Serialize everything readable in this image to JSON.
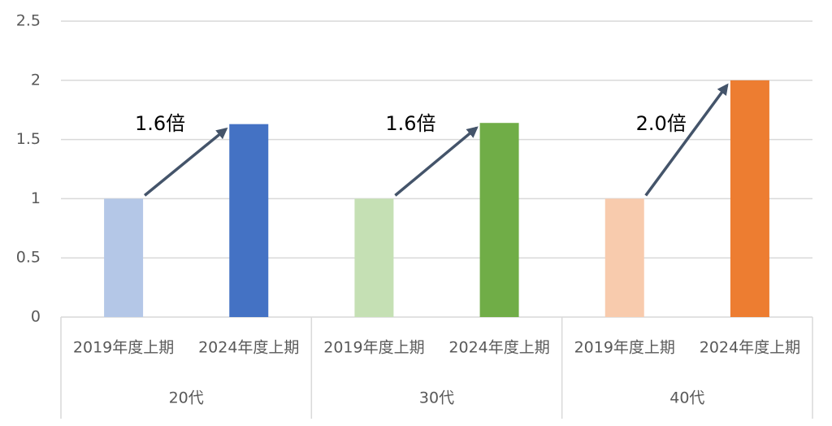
{
  "chart_data": {
    "type": "bar",
    "categories": [
      "2019年度上期",
      "2024年度上期",
      "2019年度上期",
      "2024年度上期",
      "2019年度上期",
      "2024年度上期"
    ],
    "groups": [
      "20代",
      "30代",
      "40代"
    ],
    "values": [
      1,
      1.63,
      1,
      1.64,
      1,
      2.0
    ],
    "colors": [
      "#b4c7e7",
      "#4472c4",
      "#c5e0b4",
      "#70ad47",
      "#f8cbad",
      "#ed7d31"
    ],
    "annotations": [
      "1.6倍",
      "1.6倍",
      "2.0倍"
    ],
    "ylim": [
      0,
      2.5
    ],
    "yticks": [
      0,
      0.5,
      1,
      1.5,
      2,
      2.5
    ],
    "grid": true
  }
}
